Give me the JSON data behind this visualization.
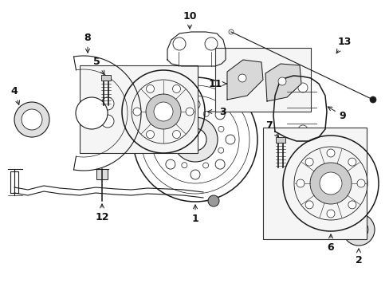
{
  "background_color": "#ffffff",
  "fig_width": 4.89,
  "fig_height": 3.6,
  "dpi": 100,
  "line_color": "#1a1a1a",
  "label_color": "#111111",
  "box_fill": "#f5f5f5",
  "box_edge": "#333333"
}
